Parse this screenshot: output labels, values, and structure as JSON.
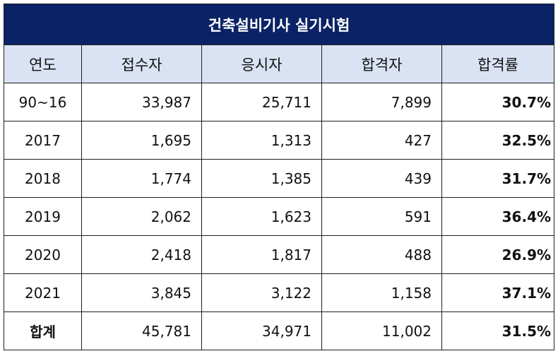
{
  "title": "건축설비기사 실기시험",
  "columns": [
    "연도",
    "접수자",
    "응시자",
    "합격자",
    "합격률"
  ],
  "rows": [
    {
      "year": "90~16",
      "applicants": "33,987",
      "examinees": "25,711",
      "passers": "7,899",
      "pass_rate": "30.7%"
    },
    {
      "year": "2017",
      "applicants": "1,695",
      "examinees": "1,313",
      "passers": "427",
      "pass_rate": "32.5%"
    },
    {
      "year": "2018",
      "applicants": "1,774",
      "examinees": "1,385",
      "passers": "439",
      "pass_rate": "31.7%"
    },
    {
      "year": "2019",
      "applicants": "2,062",
      "examinees": "1,623",
      "passers": "591",
      "pass_rate": "36.4%"
    },
    {
      "year": "2020",
      "applicants": "2,418",
      "examinees": "1,817",
      "passers": "488",
      "pass_rate": "26.9%"
    },
    {
      "year": "2021",
      "applicants": "3,845",
      "examinees": "3,122",
      "passers": "1,158",
      "pass_rate": "37.1%"
    },
    {
      "year": "합계",
      "applicants": "45,781",
      "examinees": "34,971",
      "passers": "11,002",
      "pass_rate": "31.5%"
    }
  ],
  "colors": {
    "title_bg": "#0b2366",
    "header_bg": "#dae3f3",
    "border": "#1f1f1f"
  }
}
